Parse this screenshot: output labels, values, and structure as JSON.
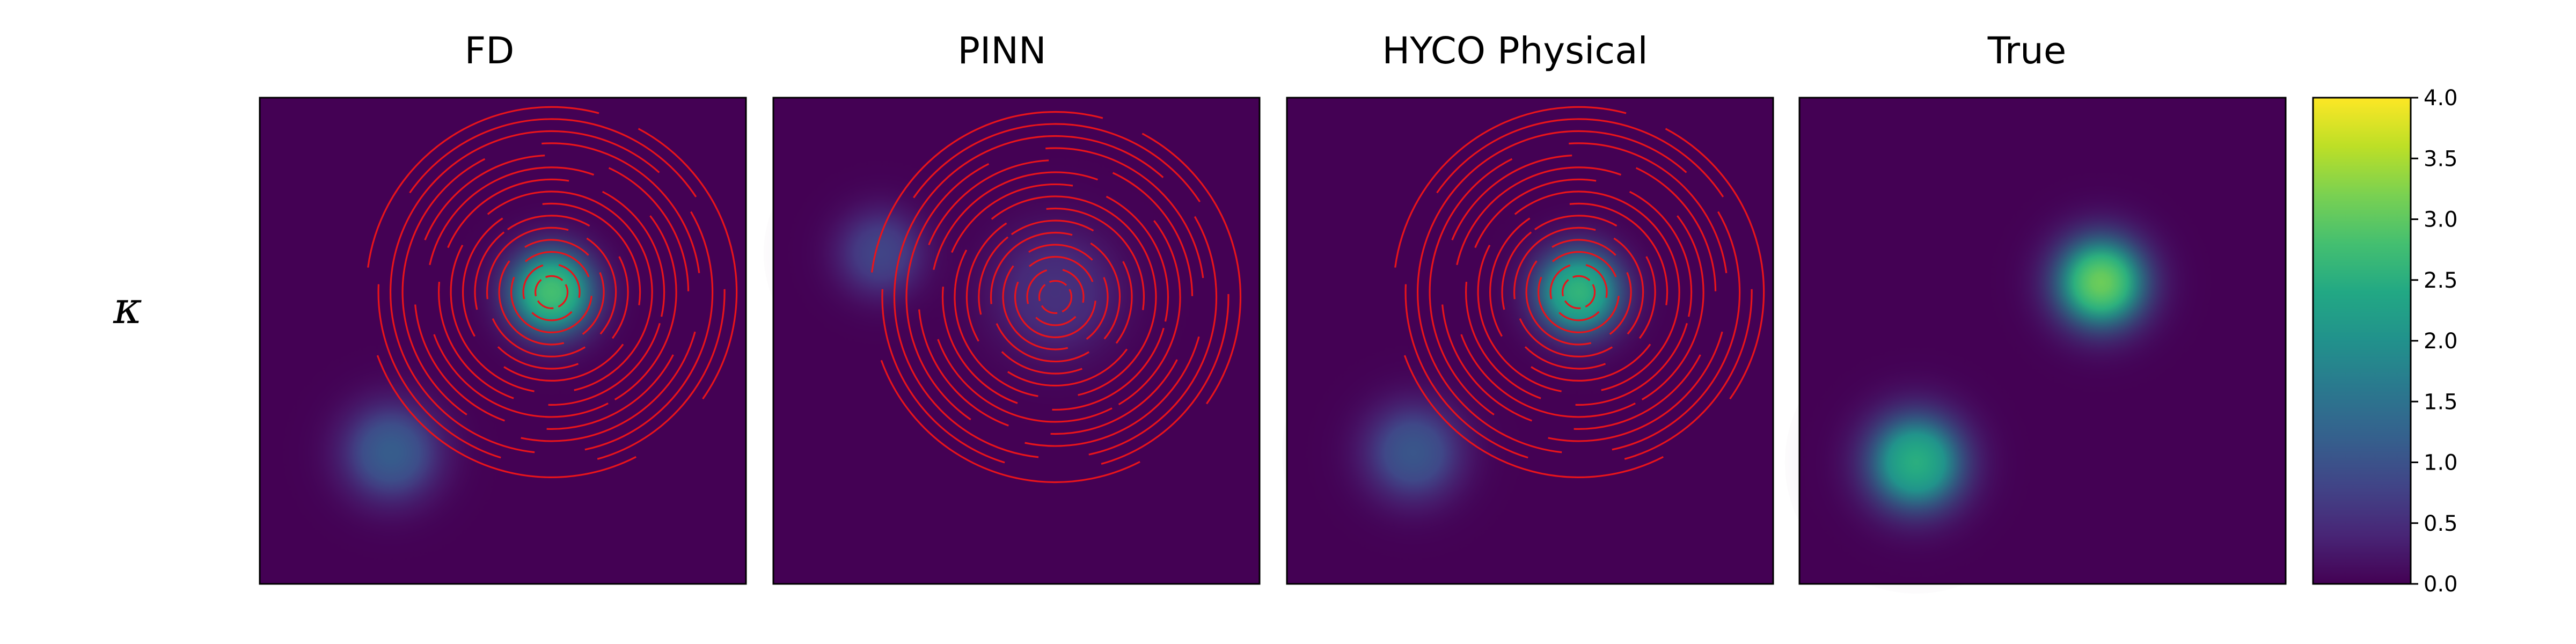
{
  "figure": {
    "row_label": "κ"
  },
  "chart_data": [
    {
      "type": "heatmap",
      "title": "FD",
      "blobs": [
        {
          "cx": 0.6,
          "cy": 0.6,
          "sigma": 0.08,
          "amp": 2.8
        },
        {
          "cx": 0.27,
          "cy": 0.27,
          "sigma": 0.09,
          "amp": 1.15
        }
      ],
      "contour_lines": {
        "color": "#e8141b",
        "center": [
          0.6,
          0.6
        ],
        "rings": 15,
        "style": "spiral arcs"
      }
    },
    {
      "type": "heatmap",
      "title": "PINN",
      "blobs": [
        {
          "cx": 0.58,
          "cy": 0.6,
          "sigma": 0.12,
          "amp": 0.55
        },
        {
          "cx": 0.22,
          "cy": 0.68,
          "sigma": 0.08,
          "amp": 0.8
        }
      ],
      "contour_lines": {
        "color": "#e8141b",
        "center": [
          0.58,
          0.59
        ],
        "rings": 15,
        "style": "spiral arcs"
      }
    },
    {
      "type": "heatmap",
      "title": "HYCO Physical",
      "blobs": [
        {
          "cx": 0.6,
          "cy": 0.6,
          "sigma": 0.08,
          "amp": 2.6
        },
        {
          "cx": 0.26,
          "cy": 0.27,
          "sigma": 0.09,
          "amp": 1.05
        }
      ],
      "contour_lines": {
        "color": "#e8141b",
        "center": [
          0.6,
          0.6
        ],
        "rings": 15,
        "style": "spiral arcs"
      }
    },
    {
      "type": "heatmap",
      "title": "True",
      "blobs": [
        {
          "cx": 0.62,
          "cy": 0.62,
          "sigma": 0.085,
          "amp": 3.1
        },
        {
          "cx": 0.24,
          "cy": 0.25,
          "sigma": 0.09,
          "amp": 2.5
        }
      ]
    }
  ],
  "colorbar": {
    "colormap": "viridis",
    "range": [
      0.0,
      4.0
    ],
    "ticks": [
      "0.0",
      "0.5",
      "1.0",
      "1.5",
      "2.0",
      "2.5",
      "3.0",
      "3.5",
      "4.0"
    ]
  }
}
